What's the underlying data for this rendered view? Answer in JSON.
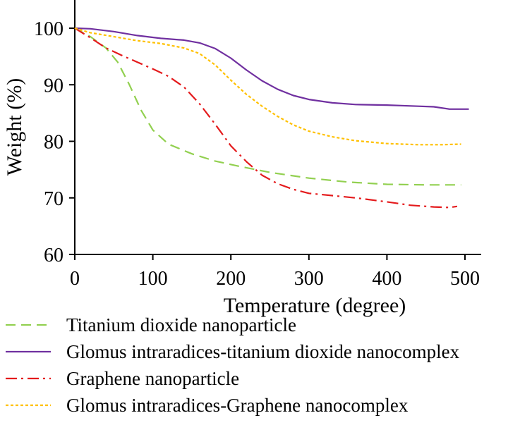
{
  "chart_data": {
    "type": "line",
    "xlabel": "Temperature (degree)",
    "ylabel": "Weight (%)",
    "xlim": [
      0,
      520
    ],
    "ylim": [
      60,
      105
    ],
    "xticks": [
      0,
      100,
      200,
      300,
      400,
      500
    ],
    "yticks": [
      60,
      70,
      80,
      90,
      100
    ],
    "x_tick_labels": [
      "0",
      "100",
      "200",
      "300",
      "400",
      "500"
    ],
    "y_tick_labels": [
      "60",
      "70",
      "80",
      "90",
      "100"
    ],
    "grid": false,
    "legend_position": "bottom",
    "series": [
      {
        "name": "Titanium dioxide nanoparticle",
        "color": "#92d050",
        "dash": "dashed",
        "x": [
          0,
          20,
          40,
          55,
          70,
          85,
          100,
          120,
          150,
          180,
          210,
          250,
          300,
          350,
          400,
          450,
          495
        ],
        "y": [
          100,
          98.5,
          96.5,
          94,
          90,
          85.5,
          82,
          79.5,
          77.8,
          76.5,
          75.6,
          74.5,
          73.5,
          72.8,
          72.4,
          72.3,
          72.3
        ]
      },
      {
        "name": "Glomus intraradices-titanium dioxide nanocomplex",
        "color": "#7030a0",
        "dash": "solid",
        "x": [
          0,
          20,
          50,
          80,
          110,
          140,
          160,
          180,
          200,
          220,
          240,
          260,
          280,
          300,
          330,
          360,
          400,
          440,
          460,
          480,
          505
        ],
        "y": [
          100,
          99.9,
          99.4,
          98.7,
          98.2,
          97.9,
          97.4,
          96.4,
          94.7,
          92.6,
          90.7,
          89.2,
          88.1,
          87.4,
          86.8,
          86.5,
          86.4,
          86.2,
          86.1,
          85.7,
          85.7
        ]
      },
      {
        "name": "Graphene nanoparticle",
        "color": "#e41a1c",
        "dash": "dashdot",
        "x": [
          0,
          20,
          40,
          60,
          80,
          100,
          120,
          140,
          160,
          180,
          200,
          220,
          240,
          260,
          280,
          300,
          330,
          360,
          400,
          430,
          460,
          480,
          490
        ],
        "y": [
          100,
          98.3,
          96.5,
          95.2,
          94,
          92.8,
          91.5,
          89.6,
          86.6,
          83,
          79.2,
          76.4,
          74,
          72.5,
          71.5,
          70.8,
          70.4,
          70,
          69.3,
          68.7,
          68.4,
          68.3,
          68.5
        ]
      },
      {
        "name": "Glomus intraradices-Graphene nanocomplex",
        "color": "#ffc000",
        "dash": "dotted",
        "x": [
          0,
          20,
          50,
          80,
          110,
          140,
          160,
          180,
          200,
          220,
          240,
          260,
          280,
          300,
          330,
          360,
          400,
          440,
          470,
          495
        ],
        "y": [
          100,
          99.2,
          98.5,
          97.8,
          97.3,
          96.5,
          95.5,
          93.5,
          90.8,
          88.3,
          86.2,
          84.4,
          82.9,
          81.8,
          80.8,
          80.1,
          79.6,
          79.4,
          79.4,
          79.5
        ]
      }
    ]
  }
}
